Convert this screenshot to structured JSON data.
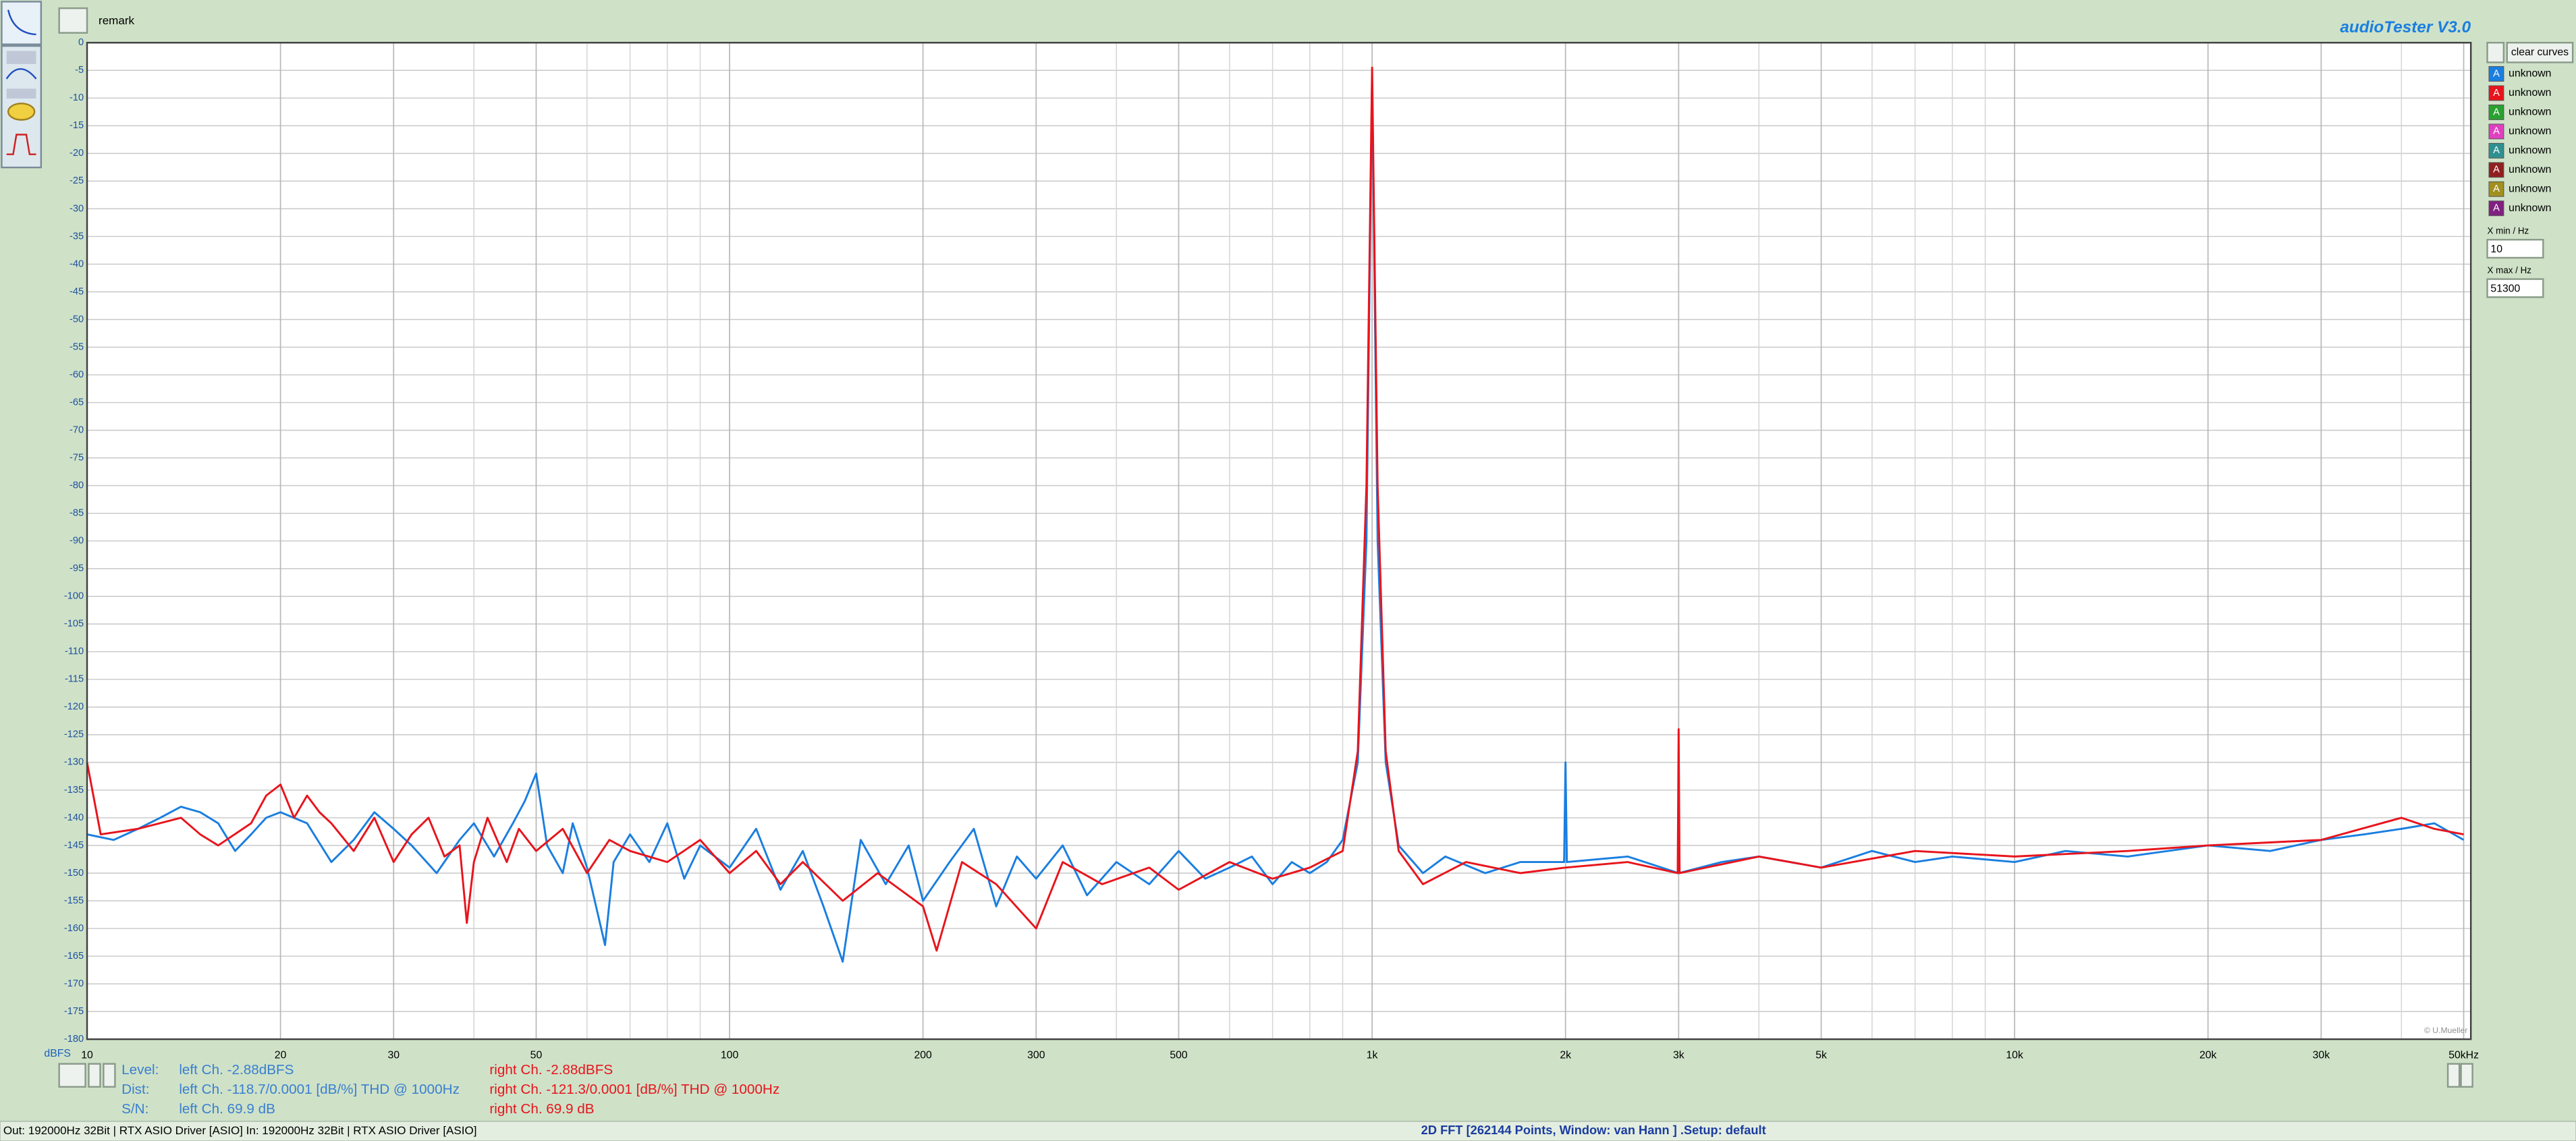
{
  "app": {
    "title": "audioTester  V3.0",
    "remark": "remark",
    "clear_button": "clear curves",
    "curves": [
      {
        "letter": "A",
        "name": "unknown",
        "color": "#1a7ee0"
      },
      {
        "letter": "A",
        "name": "unknown",
        "color": "#e8141c"
      },
      {
        "letter": "A",
        "name": "unknown",
        "color": "#2aa030"
      },
      {
        "letter": "A",
        "name": "unknown",
        "color": "#e040c0"
      },
      {
        "letter": "A",
        "name": "unknown",
        "color": "#309090"
      },
      {
        "letter": "A",
        "name": "unknown",
        "color": "#902020"
      },
      {
        "letter": "A",
        "name": "unknown",
        "color": "#a09020"
      },
      {
        "letter": "A",
        "name": "unknown",
        "color": "#802080"
      }
    ],
    "xmin_label": "X min / Hz",
    "xmax_label": "X max / Hz",
    "readouts": [
      {
        "label": "Level:",
        "left": "left Ch. -2.88dBFS",
        "right": "right Ch. -2.88dBFS"
      },
      {
        "label": "Dist:",
        "left": "left Ch. -118.7/0.0001 [dB/%] THD @ 1000Hz",
        "right": "right Ch. -121.3/0.0001 [dB/%] THD @ 1000Hz"
      },
      {
        "label": "S/N:",
        "left": "left Ch. 69.9 dB",
        "right": "right Ch. 69.9 dB"
      }
    ],
    "copyright": "© U.Mueller",
    "status": {
      "left": "Out: 192000Hz 32Bit  | RTX ASIO Driver [ASIO]  In: 192000Hz 32Bit  | RTX ASIO Driver [ASIO]",
      "center": "2D FFT [262144 Points, Window: van Hann ]  .Setup:  default"
    }
  },
  "chart_data": {
    "type": "line",
    "y_label": "dBFS",
    "x_log": true,
    "grid": true,
    "xlim": [
      10,
      51300
    ],
    "ylim": [
      -180,
      0
    ],
    "yticks": [
      0,
      -5,
      -10,
      -15,
      -20,
      -25,
      -30,
      -35,
      -40,
      -45,
      -50,
      -55,
      -60,
      -65,
      -70,
      -75,
      -80,
      -85,
      -90,
      -95,
      -100,
      -105,
      -110,
      -115,
      -120,
      -125,
      -130,
      -135,
      -140,
      -145,
      -150,
      -155,
      -160,
      -165,
      -170,
      -175,
      -180
    ],
    "xticks": [
      10,
      20,
      30,
      50,
      100,
      200,
      300,
      500,
      {
        "value": 1000,
        "label": "1k"
      },
      {
        "value": 2000,
        "label": "2k"
      },
      {
        "value": 3000,
        "label": "3k"
      },
      {
        "value": 5000,
        "label": "5k"
      },
      {
        "value": 10000,
        "label": "10k"
      },
      {
        "value": 20000,
        "label": "20k"
      },
      {
        "value": 30000,
        "label": "30k"
      },
      {
        "value": 50000,
        "label": "50kHz"
      }
    ],
    "x_minor_grid": [
      40,
      60,
      70,
      80,
      90,
      400,
      600,
      700,
      800,
      900,
      4000,
      6000,
      7000,
      8000,
      9000,
      40000
    ],
    "series": [
      {
        "color": "#1a7ee0",
        "x": [
          10,
          11,
          12,
          13,
          14,
          15,
          16,
          17,
          18,
          19,
          20,
          22,
          24,
          26,
          28,
          30,
          32,
          35,
          38,
          40,
          43,
          46,
          48,
          50,
          52,
          55,
          57,
          60,
          64,
          66,
          70,
          75,
          80,
          85,
          90,
          100,
          110,
          120,
          130,
          140,
          150,
          160,
          175,
          190,
          200,
          220,
          240,
          260,
          280,
          300,
          330,
          360,
          400,
          450,
          500,
          550,
          600,
          650,
          700,
          750,
          800,
          850,
          900,
          950,
          980,
          1000,
          1020,
          1050,
          1100,
          1200,
          1300,
          1500,
          1700,
          1990,
          2000,
          2010,
          2500,
          3000,
          3500,
          4000,
          5000,
          6000,
          7000,
          8000,
          10000,
          12000,
          15000,
          20000,
          25000,
          30000,
          35000,
          40000,
          45000,
          50000
        ],
        "values": [
          -143,
          -144,
          -142,
          -140,
          -138,
          -139,
          -141,
          -146,
          -143,
          -140,
          -139,
          -141,
          -148,
          -144,
          -139,
          -142,
          -145,
          -150,
          -144,
          -141,
          -147,
          -141,
          -137,
          -132,
          -145,
          -150,
          -141,
          -149,
          -163,
          -148,
          -143,
          -148,
          -141,
          -151,
          -145,
          -149,
          -142,
          -153,
          -146,
          -156,
          -166,
          -144,
          -152,
          -145,
          -155,
          -148,
          -142,
          -156,
          -147,
          -151,
          -145,
          -154,
          -148,
          -152,
          -146,
          -151,
          -149,
          -147,
          -152,
          -148,
          -150,
          -148,
          -144,
          -130,
          -90,
          -6,
          -90,
          -130,
          -145,
          -150,
          -147,
          -150,
          -148,
          -148,
          -130,
          -148,
          -147,
          -150,
          -148,
          -147,
          -149,
          -146,
          -148,
          -147,
          -148,
          -146,
          -147,
          -145,
          -146,
          -144,
          -143,
          -142,
          -141,
          -144
        ]
      },
      {
        "color": "#e8141c",
        "x": [
          10,
          10.5,
          12,
          14,
          15,
          16,
          18,
          19,
          20,
          21,
          22,
          23,
          24,
          26,
          28,
          30,
          32,
          34,
          36,
          38,
          39,
          40,
          42,
          45,
          47,
          50,
          55,
          60,
          65,
          70,
          80,
          90,
          100,
          110,
          120,
          130,
          150,
          170,
          200,
          210,
          230,
          260,
          300,
          330,
          380,
          450,
          500,
          600,
          700,
          800,
          900,
          950,
          980,
          1000,
          1020,
          1050,
          1100,
          1200,
          1400,
          1700,
          2000,
          2500,
          2990,
          3000,
          3010,
          4000,
          5000,
          7000,
          10000,
          15000,
          20000,
          30000,
          40000,
          45000,
          50000
        ],
        "values": [
          -130,
          -143,
          -142,
          -140,
          -143,
          -145,
          -141,
          -136,
          -134,
          -140,
          -136,
          -139,
          -141,
          -146,
          -140,
          -148,
          -143,
          -140,
          -147,
          -145,
          -159,
          -148,
          -140,
          -148,
          -142,
          -146,
          -142,
          -150,
          -144,
          -146,
          -148,
          -144,
          -150,
          -146,
          -152,
          -148,
          -155,
          -150,
          -156,
          -164,
          -148,
          -152,
          -160,
          -148,
          -152,
          -149,
          -153,
          -148,
          -151,
          -149,
          -146,
          -128,
          -80,
          -4.5,
          -80,
          -128,
          -146,
          -152,
          -148,
          -150,
          -149,
          -148,
          -150,
          -124,
          -150,
          -147,
          -149,
          -146,
          -147,
          -146,
          -145,
          -144,
          -140,
          -142,
          -143
        ]
      }
    ]
  }
}
